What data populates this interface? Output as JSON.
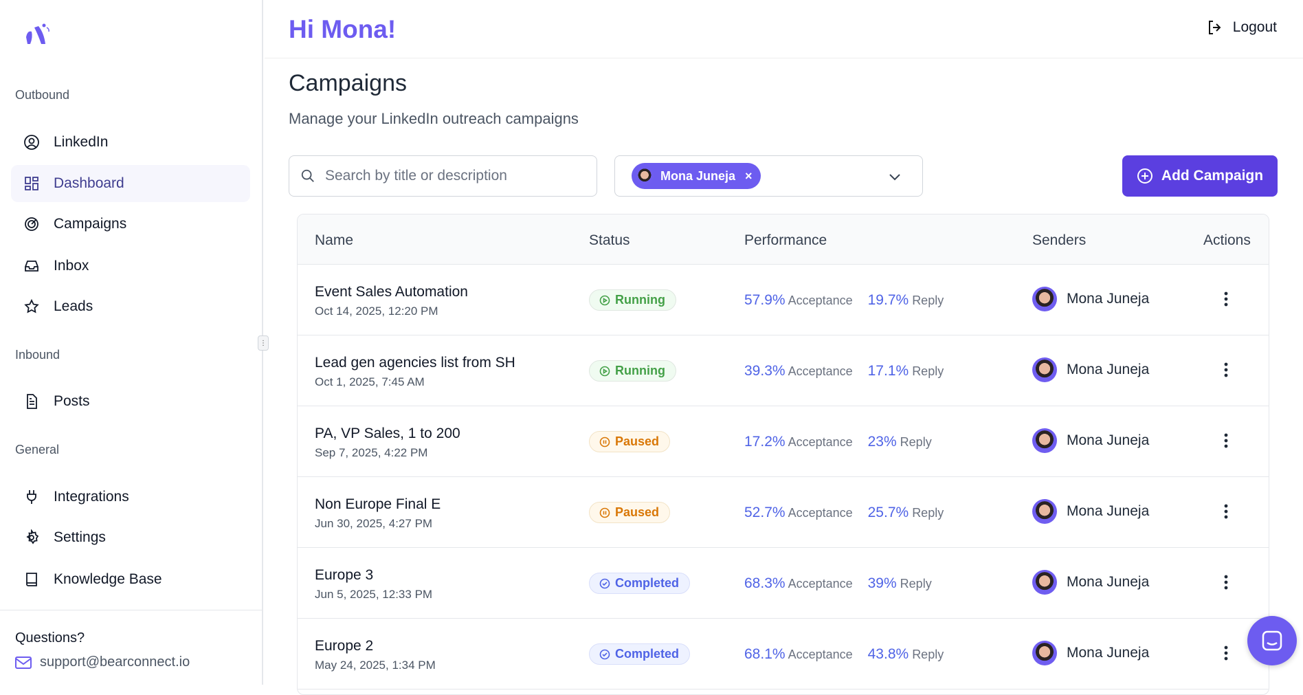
{
  "header": {
    "greeting": "Hi Mona!",
    "logout": "Logout"
  },
  "sidebar": {
    "sections": [
      "Outbound",
      "Inbound",
      "General"
    ],
    "items": [
      {
        "label": "LinkedIn",
        "icon": "user-circle-icon"
      },
      {
        "label": "Dashboard",
        "icon": "dashboard-grid-icon",
        "active": true
      },
      {
        "label": "Campaigns",
        "icon": "target-icon"
      },
      {
        "label": "Inbox",
        "icon": "inbox-icon"
      },
      {
        "label": "Leads",
        "icon": "star-icon"
      },
      {
        "label": "Posts",
        "icon": "document-icon"
      },
      {
        "label": "Integrations",
        "icon": "plug-icon"
      },
      {
        "label": "Settings",
        "icon": "gear-icon"
      },
      {
        "label": "Knowledge Base",
        "icon": "book-icon"
      }
    ],
    "questions": "Questions?",
    "support_email": "support@bearconnect.io"
  },
  "page": {
    "title": "Campaigns",
    "subtitle": "Manage your LinkedIn outreach campaigns"
  },
  "toolbar": {
    "search_placeholder": "Search by title or description",
    "filter_chip": "Mona Juneja",
    "add_label": "Add Campaign"
  },
  "table": {
    "columns": [
      "Name",
      "Status",
      "Performance",
      "Senders",
      "Actions"
    ],
    "acceptance_label": "Acceptance",
    "reply_label": "Reply",
    "rows": [
      {
        "name": "Event Sales Automation",
        "date": "Oct 14, 2025, 12:20 PM",
        "status": "Running",
        "acceptance": "57.9%",
        "reply": "19.7%",
        "sender": "Mona Juneja"
      },
      {
        "name": "Lead gen agencies list from SH",
        "date": "Oct 1, 2025, 7:45 AM",
        "status": "Running",
        "acceptance": "39.3%",
        "reply": "17.1%",
        "sender": "Mona Juneja"
      },
      {
        "name": "PA, VP Sales, 1 to 200",
        "date": "Sep 7, 2025, 4:22 PM",
        "status": "Paused",
        "acceptance": "17.2%",
        "reply": "23%",
        "sender": "Mona Juneja"
      },
      {
        "name": "Non Europe Final E",
        "date": "Jun 30, 2025, 4:27 PM",
        "status": "Paused",
        "acceptance": "52.7%",
        "reply": "25.7%",
        "sender": "Mona Juneja"
      },
      {
        "name": "Europe 3",
        "date": "Jun 5, 2025, 12:33 PM",
        "status": "Completed",
        "acceptance": "68.3%",
        "reply": "39%",
        "sender": "Mona Juneja"
      },
      {
        "name": "Europe 2",
        "date": "May 24, 2025, 1:34 PM",
        "status": "Completed",
        "acceptance": "68.1%",
        "reply": "43.8%",
        "sender": "Mona Juneja"
      }
    ]
  },
  "colors": {
    "accent": "#6d5cf0",
    "button": "#5b3fe0",
    "running": "#43a047",
    "paused": "#d97706",
    "completed": "#4f63e6"
  }
}
